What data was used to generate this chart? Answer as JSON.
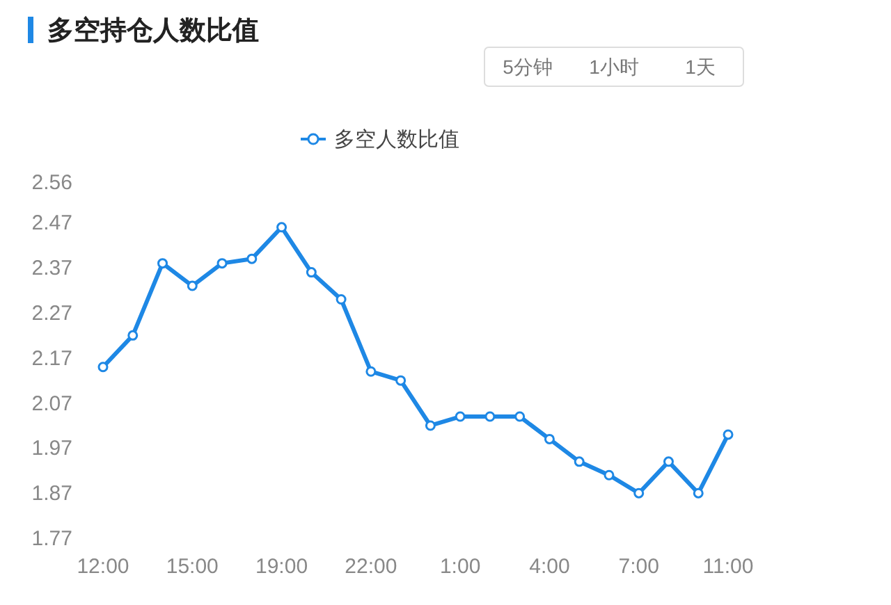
{
  "chart_data": {
    "type": "line",
    "title": "多空持仓人数比值",
    "annotations": [
      "5分钟",
      "1小时",
      "1天"
    ],
    "legend": "top",
    "marker": "circle",
    "line_style": "solid",
    "categories": [
      "12:00",
      null,
      null,
      "15:00",
      null,
      null,
      "19:00",
      null,
      null,
      "22:00",
      null,
      null,
      "1:00",
      null,
      null,
      "4:00",
      null,
      null,
      "7:00",
      null,
      null,
      "11:00"
    ],
    "ylim": [
      1.77,
      2.56
    ],
    "yticks": [
      1.77,
      1.87,
      1.97,
      2.07,
      2.17,
      2.27,
      2.37,
      2.47,
      2.56
    ],
    "series": [
      {
        "name": "多空人数比值",
        "color": "#1e88e5",
        "values": [
          2.15,
          2.22,
          2.38,
          2.33,
          2.38,
          2.39,
          2.46,
          2.36,
          2.3,
          2.14,
          2.12,
          2.02,
          2.04,
          2.04,
          2.04,
          1.99,
          1.94,
          1.91,
          1.87,
          1.94,
          1.87,
          2.0
        ]
      }
    ]
  }
}
